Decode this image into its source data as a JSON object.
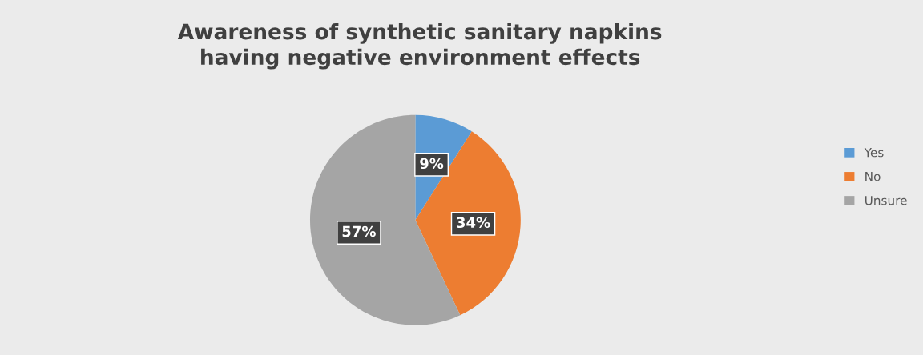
{
  "chart_data": {
    "type": "pie",
    "title": "Awareness of synthetic sanitary napkins\nhaving negative environment effects",
    "categories": [
      "Yes",
      "No",
      "Unsure"
    ],
    "values": [
      9,
      34,
      57
    ],
    "colors": [
      "#5b9bd5",
      "#ed7d31",
      "#a5a5a5"
    ],
    "value_labels": [
      "9%",
      "34%",
      "57%"
    ],
    "legend": "right"
  }
}
